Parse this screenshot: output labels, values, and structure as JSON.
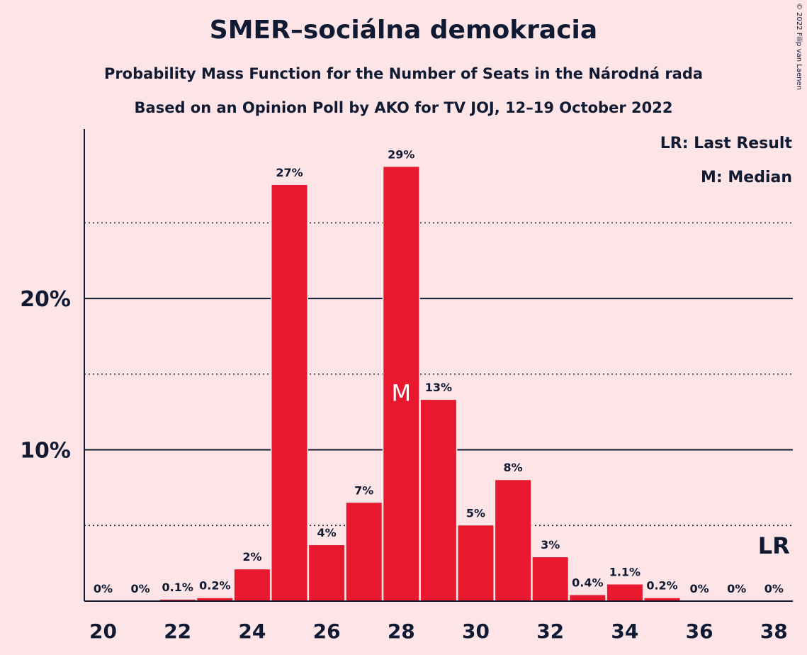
{
  "header": {
    "title": "SMER–sociálna demokracia",
    "subtitle1": "Probability Mass Function for the Number of Seats in the Národná rada",
    "subtitle2": "Based on an Opinion Poll by AKO for TV JOJ, 12–19 October 2022",
    "copyright": "© 2022 Filip van Laenen"
  },
  "legend": {
    "last_result": "LR: Last Result",
    "median": "M: Median"
  },
  "colors": {
    "background": "#fde4e6",
    "bar": "#e8192f",
    "text": "#111a33"
  },
  "chart_data": {
    "type": "bar",
    "x": [
      20,
      21,
      22,
      23,
      24,
      25,
      26,
      27,
      28,
      29,
      30,
      31,
      32,
      33,
      34,
      35,
      36,
      37,
      38
    ],
    "values": [
      0,
      0,
      0.1,
      0.2,
      2.1,
      27.5,
      3.7,
      6.5,
      28.7,
      13.3,
      5.0,
      8.0,
      2.9,
      0.4,
      1.1,
      0.2,
      0,
      0,
      0
    ],
    "labels": [
      "0%",
      "0%",
      "0.1%",
      "0.2%",
      "2%",
      "27%",
      "4%",
      "7%",
      "29%",
      "13%",
      "5%",
      "8%",
      "3%",
      "0.4%",
      "1.1%",
      "0.2%",
      "0%",
      "0%",
      "0%"
    ],
    "xticks": [
      "20",
      "22",
      "24",
      "26",
      "28",
      "30",
      "32",
      "34",
      "36",
      "38"
    ],
    "yticks": [
      {
        "value": 10,
        "label": "10%"
      },
      {
        "value": 20,
        "label": "20%"
      }
    ],
    "minor_gridlines": [
      5,
      15,
      25
    ],
    "ylim": [
      0,
      31.2
    ],
    "median": {
      "seats": 28,
      "marker": "M"
    },
    "last_result": {
      "seats": 38,
      "marker": "LR"
    },
    "legend_position": "top-right",
    "grid": true
  }
}
